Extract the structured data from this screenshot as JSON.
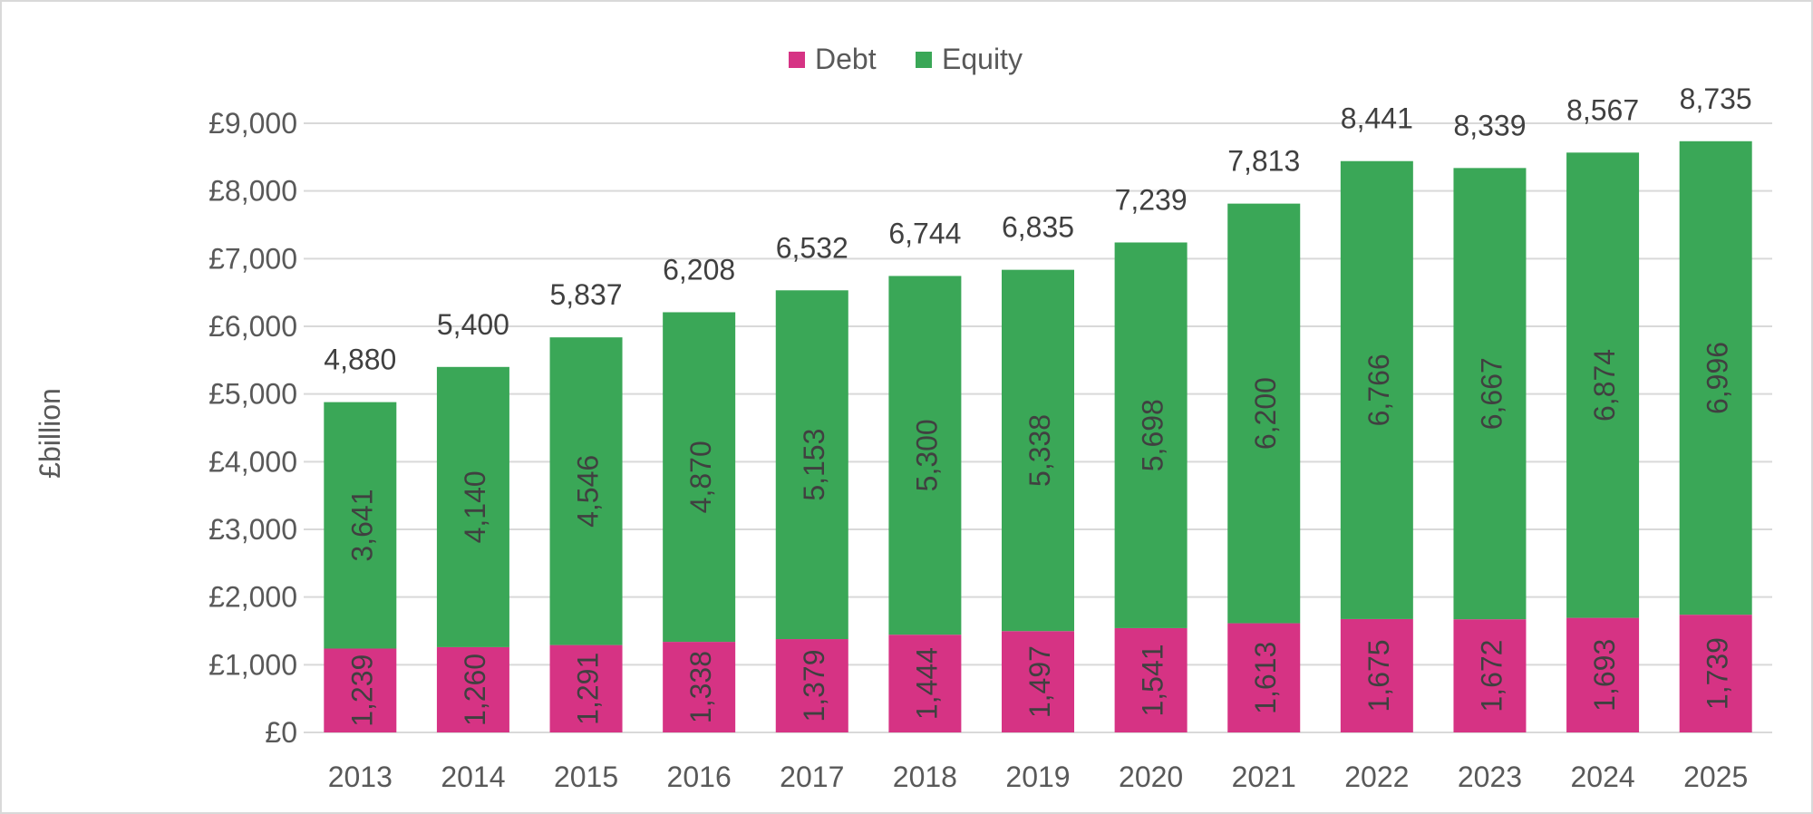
{
  "chart_data": {
    "type": "bar",
    "stacked": true,
    "title": "",
    "xlabel": "",
    "ylabel": "£billion",
    "ylim": [
      0,
      9000
    ],
    "y_ticks": [
      {
        "value": 0,
        "label": "£0"
      },
      {
        "value": 1000,
        "label": "£1,000"
      },
      {
        "value": 2000,
        "label": "£2,000"
      },
      {
        "value": 3000,
        "label": "£3,000"
      },
      {
        "value": 4000,
        "label": "£4,000"
      },
      {
        "value": 5000,
        "label": "£5,000"
      },
      {
        "value": 6000,
        "label": "£6,000"
      },
      {
        "value": 7000,
        "label": "£7,000"
      },
      {
        "value": 8000,
        "label": "£8,000"
      },
      {
        "value": 9000,
        "label": "£9,000"
      }
    ],
    "grid": true,
    "legend_position": "top",
    "categories": [
      "2013",
      "2014",
      "2015",
      "2016",
      "2017",
      "2018",
      "2019",
      "2020",
      "2021",
      "2022",
      "2023",
      "2024",
      "2025"
    ],
    "series": [
      {
        "name": "Debt",
        "color": "#d63384",
        "values": [
          1239,
          1260,
          1291,
          1338,
          1379,
          1444,
          1497,
          1541,
          1613,
          1675,
          1672,
          1693,
          1739
        ],
        "labels": [
          "1,239",
          "1,260",
          "1,291",
          "1,338",
          "1,379",
          "1,444",
          "1,497",
          "1,541",
          "1,613",
          "1,675",
          "1,672",
          "1,693",
          "1,739"
        ]
      },
      {
        "name": "Equity",
        "color": "#3aa757",
        "values": [
          3641,
          4140,
          4546,
          4870,
          5153,
          5300,
          5338,
          5698,
          6200,
          6766,
          6667,
          6874,
          6996
        ],
        "labels": [
          "3,641",
          "4,140",
          "4,546",
          "4,870",
          "5,153",
          "5,300",
          "5,338",
          "5,698",
          "6,200",
          "6,766",
          "6,667",
          "6,874",
          "6,996"
        ]
      }
    ],
    "totals": [
      4880,
      5400,
      5837,
      6208,
      6532,
      6744,
      6835,
      7239,
      7813,
      8441,
      8339,
      8567,
      8735
    ],
    "total_labels": [
      "4,880",
      "5,400",
      "5,837",
      "6,208",
      "6,532",
      "6,744",
      "6,835",
      "7,239",
      "7,813",
      "8,441",
      "8,339",
      "8,567",
      "8,735"
    ],
    "colors": {
      "gridline": "#d9d9d9",
      "axis_text": "#595959",
      "label_text": "#404040",
      "border": "#d9d9d9"
    }
  }
}
